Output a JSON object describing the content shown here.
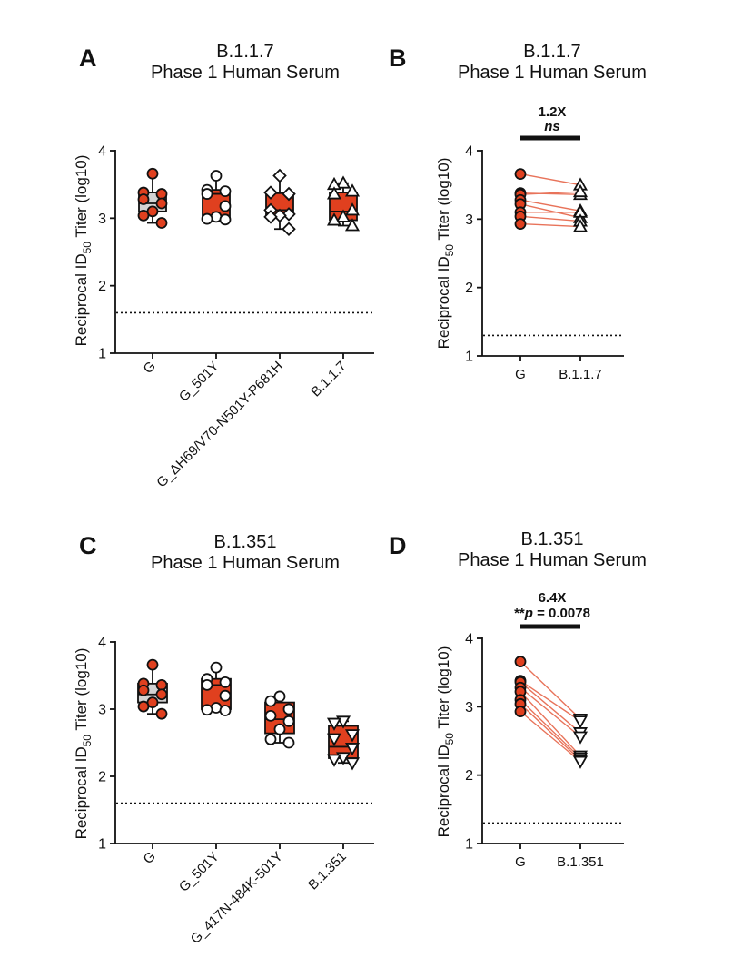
{
  "panels": [
    {
      "id": "A",
      "letter": "A",
      "title_line1": "B.1.1.7",
      "title_line2": "Phase 1 Human Serum",
      "ylabel": "Reciprocal ID50 Titer (log10)",
      "ylabel_parts": {
        "prefix": "Reciprocal ID",
        "sub": "50",
        "suffix": " Titer (log10)"
      }
    },
    {
      "id": "B",
      "letter": "B",
      "title_line1": "B.1.1.7",
      "title_line2": "Phase 1 Human Serum",
      "ylabel": "Reciprocal ID50 Titer (log10)",
      "ylabel_parts": {
        "prefix": "Reciprocal ID",
        "sub": "50",
        "suffix": " Titer (log10)"
      },
      "annotation": {
        "fold": "1.2X",
        "stars": "",
        "stat": "ns",
        "stat_italic": true
      }
    },
    {
      "id": "C",
      "letter": "C",
      "title_line1": "B.1.351",
      "title_line2": "Phase 1 Human Serum",
      "ylabel": "Reciprocal ID50 Titer (log10)",
      "ylabel_parts": {
        "prefix": "Reciprocal ID",
        "sub": "50",
        "suffix": " Titer (log10)"
      }
    },
    {
      "id": "D",
      "letter": "D",
      "title_line1": "B.1.351",
      "title_line2": "Phase 1 Human Serum",
      "ylabel": "Reciprocal ID50 Titer (log10)",
      "ylabel_parts": {
        "prefix": "Reciprocal ID",
        "sub": "50",
        "suffix": " Titer (log10)"
      },
      "annotation": {
        "fold": "6.4X",
        "stars": "**",
        "stat_p": "p",
        "stat_rest": " = 0.0078"
      }
    }
  ],
  "colors": {
    "red": "#e0401f",
    "grey": "#d3d3d3",
    "line": "#e8735a",
    "ink": "#111111"
  },
  "chart_data": [
    {
      "panel": "A",
      "type": "box",
      "title": "B.1.1.7 Phase 1 Human Serum",
      "ylabel": "Reciprocal ID50 Titer (log10)",
      "ylim": [
        1,
        4
      ],
      "yticks": [
        1,
        2,
        3,
        4
      ],
      "threshold": 1.6,
      "categories": [
        "G",
        "G_501Y",
        "G_ΔH69/V70-N501Y-P681H",
        "B.1.1.7"
      ],
      "markers": [
        "circle-red",
        "circle-white",
        "diamond",
        "triangle-up"
      ],
      "box_fill": [
        "grey",
        "red",
        "red",
        "red"
      ],
      "boxes": [
        {
          "min": 2.93,
          "q1": 3.1,
          "median": 3.22,
          "q3": 3.38,
          "max": 3.66
        },
        {
          "min": 2.98,
          "q1": 3.0,
          "median": 3.36,
          "q3": 3.42,
          "max": 3.63
        },
        {
          "min": 2.84,
          "q1": 3.04,
          "median": 3.12,
          "q3": 3.37,
          "max": 3.63
        },
        {
          "min": 2.89,
          "q1": 2.97,
          "median": 3.1,
          "q3": 3.38,
          "max": 3.52
        }
      ],
      "points": [
        [
          3.66,
          3.38,
          3.36,
          3.28,
          3.22,
          3.1,
          3.04,
          2.93
        ],
        [
          3.63,
          3.42,
          3.4,
          3.36,
          3.18,
          3.02,
          2.99,
          2.98
        ],
        [
          3.63,
          3.38,
          3.36,
          3.12,
          3.06,
          3.04,
          3.02,
          2.84
        ],
        [
          3.52,
          3.5,
          3.4,
          3.36,
          3.12,
          3.02,
          2.97,
          2.89
        ]
      ]
    },
    {
      "panel": "B",
      "type": "paired",
      "title": "B.1.1.7 Phase 1 Human Serum",
      "ylabel": "Reciprocal ID50 Titer (log10)",
      "ylim": [
        1,
        4
      ],
      "yticks": [
        1,
        2,
        3,
        4
      ],
      "threshold": 1.3,
      "categories": [
        "G",
        "B.1.1.7"
      ],
      "markers": [
        "circle-red",
        "triangle-up"
      ],
      "pairs": [
        [
          3.66,
          3.5
        ],
        [
          3.38,
          3.36
        ],
        [
          3.36,
          3.4
        ],
        [
          3.28,
          3.12
        ],
        [
          3.22,
          3.02
        ],
        [
          3.1,
          3.1
        ],
        [
          3.04,
          2.97
        ],
        [
          2.93,
          2.89
        ]
      ],
      "fold_change": "1.2X",
      "significance": "ns"
    },
    {
      "panel": "C",
      "type": "box",
      "title": "B.1.351 Phase 1 Human Serum",
      "ylabel": "Reciprocal ID50 Titer (log10)",
      "ylim": [
        1,
        4
      ],
      "yticks": [
        1,
        2,
        3,
        4
      ],
      "threshold": 1.6,
      "categories": [
        "G",
        "G_501Y",
        "G_417N-484K-501Y",
        "B.1.351"
      ],
      "markers": [
        "circle-red",
        "circle-white",
        "circle-white",
        "triangle-down"
      ],
      "box_fill": [
        "grey",
        "red",
        "red",
        "red"
      ],
      "boxes": [
        {
          "min": 2.93,
          "q1": 3.1,
          "median": 3.22,
          "q3": 3.38,
          "max": 3.66
        },
        {
          "min": 2.98,
          "q1": 3.0,
          "median": 3.36,
          "q3": 3.45,
          "max": 3.62
        },
        {
          "min": 2.5,
          "q1": 2.64,
          "median": 2.85,
          "q3": 3.1,
          "max": 3.19
        },
        {
          "min": 2.2,
          "q1": 2.27,
          "median": 2.44,
          "q3": 2.75,
          "max": 2.82
        }
      ],
      "points": [
        [
          3.66,
          3.38,
          3.36,
          3.28,
          3.22,
          3.1,
          3.04,
          2.93
        ],
        [
          3.62,
          3.45,
          3.4,
          3.36,
          3.2,
          3.02,
          2.99,
          2.98
        ],
        [
          3.19,
          3.12,
          3.0,
          2.9,
          2.82,
          2.7,
          2.55,
          2.5
        ],
        [
          2.82,
          2.79,
          2.62,
          2.56,
          2.42,
          2.28,
          2.25,
          2.2
        ]
      ]
    },
    {
      "panel": "D",
      "type": "paired",
      "title": "B.1.351 Phase 1 Human Serum",
      "ylabel": "Reciprocal ID50 Titer (log10)",
      "ylim": [
        1,
        4
      ],
      "yticks": [
        1,
        2,
        3,
        4
      ],
      "threshold": 1.3,
      "categories": [
        "G",
        "B.1.351"
      ],
      "markers": [
        "circle-red",
        "triangle-down"
      ],
      "pairs": [
        [
          3.66,
          2.82
        ],
        [
          3.38,
          2.79
        ],
        [
          3.36,
          2.62
        ],
        [
          3.28,
          2.56
        ],
        [
          3.22,
          2.28
        ],
        [
          3.1,
          2.25
        ],
        [
          3.04,
          2.22
        ],
        [
          2.93,
          2.2
        ]
      ],
      "fold_change": "6.4X",
      "significance": "**p = 0.0078"
    }
  ]
}
